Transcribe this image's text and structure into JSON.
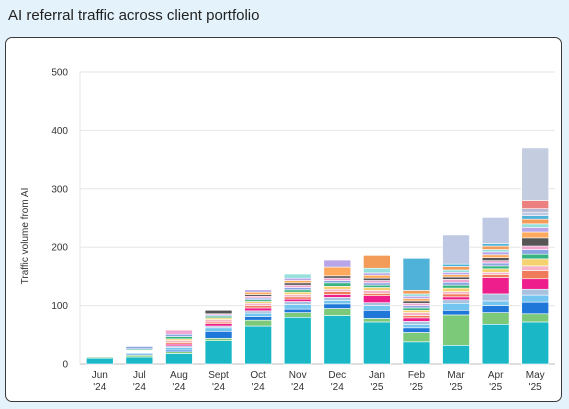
{
  "title": "AI referral traffic across client portfolio",
  "chart_data": {
    "type": "bar",
    "stacked": true,
    "ylabel": "Traffic volume from AI",
    "xlabel": "",
    "ylim": [
      0,
      500
    ],
    "yticks": [
      0,
      100,
      200,
      300,
      400,
      500
    ],
    "grid": true,
    "categories": [
      {
        "month": "Jun",
        "year": "'24"
      },
      {
        "month": "Jul",
        "year": "'24"
      },
      {
        "month": "Aug",
        "year": "'24"
      },
      {
        "month": "Sept",
        "year": "'24"
      },
      {
        "month": "Oct",
        "year": "'24"
      },
      {
        "month": "Nov",
        "year": "'24"
      },
      {
        "month": "Dec",
        "year": "'24"
      },
      {
        "month": "Jan",
        "year": "'25"
      },
      {
        "month": "Feb",
        "year": "'25"
      },
      {
        "month": "Mar",
        "year": "'25"
      },
      {
        "month": "Apr",
        "year": "'25"
      },
      {
        "month": "May",
        "year": "'25"
      }
    ],
    "colors": [
      "#1ab8c6",
      "#7dc97a",
      "#1f78d9",
      "#73c4ef",
      "#a8c1de",
      "#ee1e8c",
      "#f07b5b",
      "#f6b3c5",
      "#f4d270",
      "#36b37e",
      "#8aa5e2",
      "#f0a4d0",
      "#555555",
      "#ffa95c",
      "#b9a6e8",
      "#95e0dc",
      "#f39c5a",
      "#4fb3d9",
      "#c0c9e4",
      "#b5b8d3",
      "#ec7f7f",
      "#c4cde0"
    ],
    "stacks": [
      [
        10,
        2,
        1,
        1,
        1,
        1,
        1,
        1
      ],
      [
        12,
        3,
        2,
        2,
        1,
        1,
        1,
        1,
        1,
        2,
        4
      ],
      [
        18,
        3,
        3,
        4,
        3,
        3,
        3,
        3,
        3,
        4,
        4,
        7
      ],
      [
        40,
        4,
        12,
        6,
        3,
        4,
        3,
        4,
        3,
        3,
        2,
        2,
        6
      ],
      [
        65,
        10,
        6,
        6,
        4,
        5,
        4,
        4,
        3,
        3,
        3,
        3,
        3,
        4,
        4
      ],
      [
        80,
        8,
        6,
        8,
        5,
        4,
        4,
        4,
        4,
        4,
        4,
        4,
        4,
        4,
        4,
        7
      ],
      [
        83,
        12,
        8,
        6,
        5,
        5,
        5,
        4,
        5,
        6,
        4,
        4,
        4,
        15,
        12
      ],
      [
        72,
        6,
        14,
        8,
        5,
        12,
        4,
        5,
        5,
        4,
        4,
        4,
        4,
        5,
        4,
        8,
        22
      ],
      [
        38,
        16,
        8,
        6,
        5,
        6,
        4,
        5,
        4,
        4,
        4,
        4,
        4,
        4,
        4,
        4,
        6,
        55
      ],
      [
        32,
        52,
        8,
        12,
        6,
        5,
        5,
        4,
        6,
        5,
        5,
        5,
        4,
        4,
        4,
        4,
        6,
        4,
        50
      ],
      [
        68,
        20,
        12,
        8,
        12,
        28,
        5,
        4,
        6,
        5,
        5,
        4,
        5,
        5,
        5,
        4,
        6,
        4,
        45
      ],
      [
        72,
        14,
        20,
        12,
        10,
        18,
        14,
        8,
        12,
        8,
        8,
        6,
        14,
        10,
        8,
        6,
        8,
        6,
        6,
        6,
        14,
        90
      ]
    ]
  }
}
